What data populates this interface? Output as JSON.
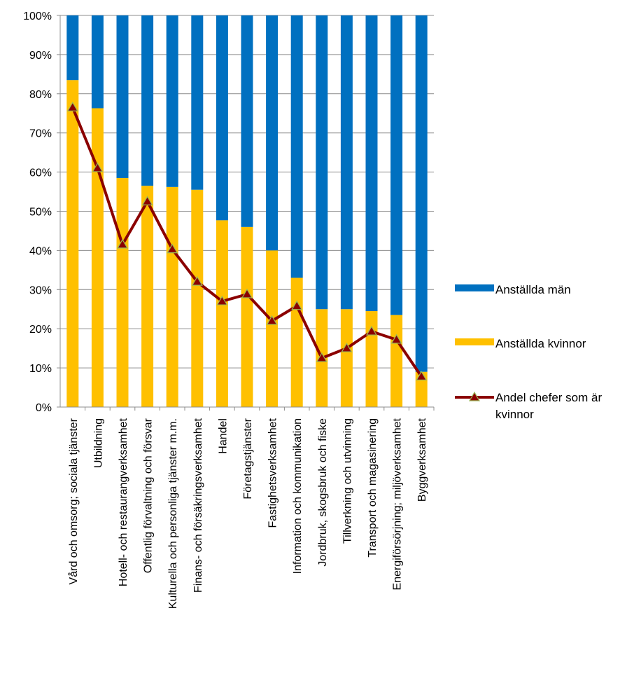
{
  "chart_data": {
    "type": "bar",
    "stacked": true,
    "percent_stacked": true,
    "categories": [
      "Vård och omsorg;  sociala tjänster",
      "Utbildning",
      "Hotell- och restaurangverksamhet",
      "Offentlig förvaltning  och försvar",
      "Kulturella och personliga tjänster m.m.",
      "Finans- och försäkringsverksamhet",
      "Handel",
      "Företagstjänster",
      "Fastighetsverksamhet",
      "Information  och kommunikation",
      "Jordbruk, skogsbruk och fiske",
      "Tillverkning och utvinning",
      "Transport och magasinering",
      "Energiförsörjning; miljöverksamhet",
      "Byggverksamhet"
    ],
    "series": [
      {
        "name": "Anställda män",
        "type": "bar",
        "color": "#0070C0",
        "values": [
          16.5,
          23.7,
          41.5,
          43.5,
          43.8,
          44.5,
          52.3,
          54.0,
          60.0,
          67.0,
          75.0,
          75.0,
          75.5,
          76.5,
          91.0
        ]
      },
      {
        "name": "Anställda kvinnor",
        "type": "bar",
        "color": "#FFC000",
        "values": [
          83.5,
          76.3,
          58.5,
          56.5,
          56.2,
          55.5,
          47.7,
          46.0,
          40.0,
          33.0,
          25.0,
          25.0,
          24.5,
          23.5,
          9.0
        ]
      },
      {
        "name": "Andel chefer som är kvinnor",
        "type": "line",
        "color": "#8B0000",
        "marker": "triangle",
        "marker_color": "#8B0000",
        "values": [
          76.5,
          61.0,
          41.5,
          52.5,
          40.3,
          32.0,
          27.0,
          28.8,
          22.0,
          25.8,
          12.5,
          15.0,
          19.3,
          17.2,
          7.8
        ]
      }
    ],
    "y_ticks": [
      "0%",
      "10%",
      "20%",
      "30%",
      "40%",
      "50%",
      "60%",
      "70%",
      "80%",
      "90%",
      "100%"
    ],
    "ylim": [
      0,
      100
    ],
    "grid": true,
    "legend_position": "right"
  }
}
